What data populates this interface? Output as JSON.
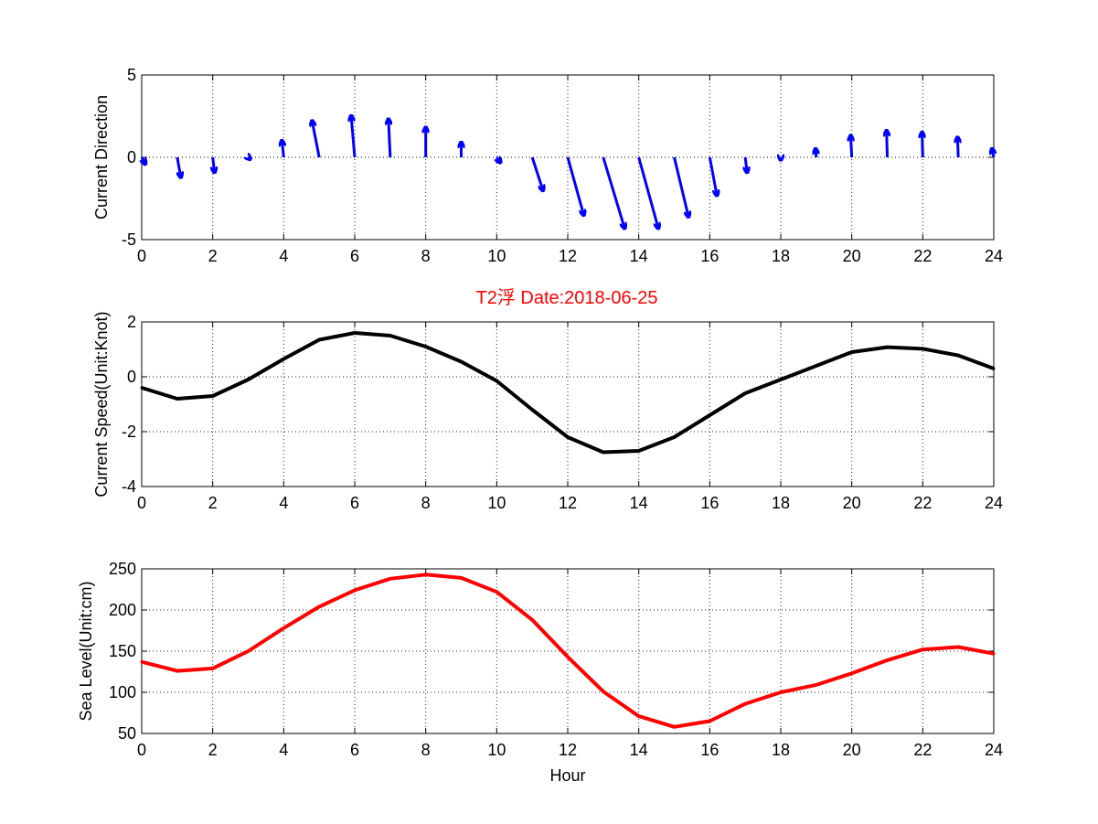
{
  "figure_title": "T2浮   Date:2018-06-25",
  "colors": {
    "arrows": "#0000ff",
    "speed": "#000000",
    "sea_level": "#ff0000",
    "title": "#ff0000"
  },
  "chart_data": [
    {
      "type": "quiver",
      "ylabel": "Current Direction",
      "xlabel": "",
      "xlim": [
        0,
        24
      ],
      "ylim": [
        -5,
        5
      ],
      "x_ticks": [
        0,
        2,
        4,
        6,
        8,
        10,
        12,
        14,
        16,
        18,
        20,
        22,
        24
      ],
      "y_ticks": [
        -5,
        0,
        5
      ],
      "grid": true,
      "x": [
        0,
        1,
        2,
        3,
        4,
        5,
        6,
        7,
        8,
        9,
        10,
        11,
        12,
        13,
        14,
        15,
        16,
        17,
        18,
        19,
        20,
        21,
        22,
        23,
        24
      ],
      "u": [
        0.1,
        0.1,
        0.05,
        0.05,
        -0.05,
        -0.2,
        -0.1,
        -0.05,
        0.0,
        0.0,
        0.1,
        0.3,
        0.45,
        0.6,
        0.55,
        0.4,
        0.2,
        0.05,
        0.0,
        -0.02,
        -0.03,
        -0.02,
        -0.02,
        -0.02,
        -0.05
      ],
      "v": [
        -0.4,
        -1.2,
        -0.9,
        -0.1,
        1.0,
        2.2,
        2.5,
        2.3,
        1.8,
        0.9,
        -0.3,
        -2.0,
        -3.5,
        -4.3,
        -4.3,
        -3.6,
        -2.3,
        -0.9,
        -0.15,
        0.5,
        1.3,
        1.6,
        1.5,
        1.2,
        0.5
      ]
    },
    {
      "type": "line",
      "title": "T2浮   Date:2018-06-25",
      "ylabel": "Current Speed(Unit:Knot)",
      "xlabel": "",
      "xlim": [
        0,
        24
      ],
      "ylim": [
        -4,
        2
      ],
      "x_ticks": [
        0,
        2,
        4,
        6,
        8,
        10,
        12,
        14,
        16,
        18,
        20,
        22,
        24
      ],
      "y_ticks": [
        -4,
        -2,
        0,
        2
      ],
      "grid": true,
      "x": [
        0,
        1,
        2,
        3,
        4,
        5,
        6,
        7,
        8,
        9,
        10,
        11,
        12,
        13,
        14,
        15,
        16,
        17,
        18,
        19,
        20,
        21,
        22,
        23,
        24
      ],
      "values": [
        -0.4,
        -0.8,
        -0.7,
        -0.1,
        0.65,
        1.35,
        1.6,
        1.5,
        1.1,
        0.55,
        -0.15,
        -1.2,
        -2.2,
        -2.75,
        -2.7,
        -2.2,
        -1.4,
        -0.6,
        -0.1,
        0.4,
        0.9,
        1.08,
        1.02,
        0.78,
        0.3
      ]
    },
    {
      "type": "line",
      "ylabel": "Sea Level(Unit:cm)",
      "xlabel": "Hour",
      "xlim": [
        0,
        24
      ],
      "ylim": [
        50,
        250
      ],
      "x_ticks": [
        0,
        2,
        4,
        6,
        8,
        10,
        12,
        14,
        16,
        18,
        20,
        22,
        24
      ],
      "y_ticks": [
        50,
        100,
        150,
        200,
        250
      ],
      "grid": true,
      "x": [
        0,
        1,
        2,
        3,
        4,
        5,
        6,
        7,
        8,
        9,
        10,
        11,
        12,
        13,
        14,
        15,
        16,
        17,
        18,
        19,
        20,
        21,
        22,
        23,
        24
      ],
      "values": [
        137,
        126,
        129,
        150,
        178,
        204,
        224,
        238,
        243,
        239,
        222,
        188,
        143,
        101,
        71,
        58,
        65,
        86,
        100,
        109,
        123,
        139,
        152,
        155,
        147
      ]
    }
  ]
}
